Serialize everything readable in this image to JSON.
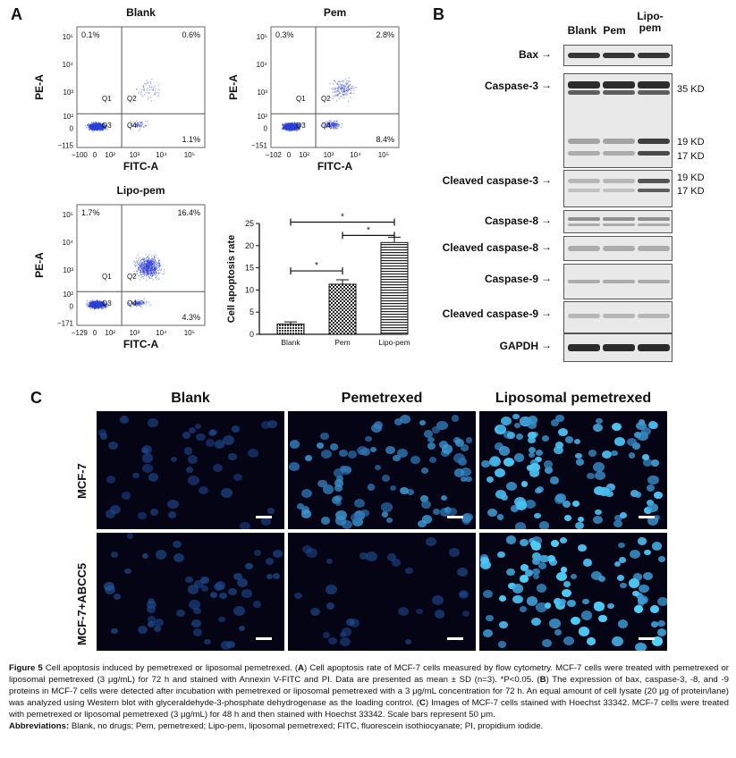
{
  "panel_a": {
    "letter": "A",
    "plots": [
      {
        "title": "Blank",
        "xlabel": "FITC-A",
        "ylabel": "PE-A",
        "xticks": [
          "−100",
          "0",
          "10²",
          "10³",
          "10⁴",
          "10⁵"
        ],
        "yticks": [
          "10⁵",
          "10⁴",
          "10³",
          "10²",
          "0",
          "−115"
        ],
        "quadrant_labels": [
          "Q1",
          "Q2",
          "Q3",
          "Q4"
        ],
        "percentages": {
          "q1": "0.1%",
          "q2": "0.6%",
          "q4": "1.1%"
        }
      },
      {
        "title": "Pem",
        "xlabel": "FITC-A",
        "ylabel": "PE-A",
        "xticks": [
          "−102",
          "0",
          "10²",
          "10³",
          "10⁴",
          "10⁵"
        ],
        "yticks": [
          "10⁵",
          "10⁴",
          "10³",
          "10²",
          "0",
          "−151"
        ],
        "quadrant_labels": [
          "Q1",
          "Q2",
          "Q3",
          "Q4"
        ],
        "percentages": {
          "q1": "0.3%",
          "q2": "2.8%",
          "q4": "8.4%"
        }
      },
      {
        "title": "Lipo-pem",
        "xlabel": "FITC-A",
        "ylabel": "PE-A",
        "xticks": [
          "−129",
          "0",
          "10²",
          "10³",
          "10⁴",
          "10⁵"
        ],
        "yticks": [
          "10⁵",
          "10⁴",
          "10³",
          "10²",
          "0",
          "−171"
        ],
        "quadrant_labels": [
          "Q1",
          "Q2",
          "Q3",
          "Q4"
        ],
        "percentages": {
          "q1": "1.7%",
          "q2": "16.4%",
          "q4": "4.3%"
        }
      }
    ]
  },
  "chart_data": {
    "type": "bar",
    "categories": [
      "Blank",
      "Pem",
      "Lipo-pem"
    ],
    "values": [
      2.3,
      11.3,
      20.7
    ],
    "errors": [
      0.5,
      1.0,
      1.2
    ],
    "ylabel": "Cell apoptosis rate",
    "ylim": [
      0,
      25
    ],
    "yticks": [
      "0",
      "5",
      "10",
      "15",
      "20",
      "25"
    ],
    "significance": [
      "*",
      "*",
      "*"
    ]
  },
  "panel_b": {
    "letter": "B",
    "lanes": [
      "Blank",
      "Pem",
      "Lipo-pem"
    ],
    "blots": [
      {
        "name": "Bax",
        "kd": []
      },
      {
        "name": "Caspase-3",
        "kd": [
          "35 KD",
          "19 KD",
          "17 KD"
        ]
      },
      {
        "name": "Cleaved caspase-3",
        "kd": [
          "19 KD",
          "17 KD"
        ]
      },
      {
        "name": "Caspase-8",
        "kd": []
      },
      {
        "name": "Cleaved caspase-8",
        "kd": []
      },
      {
        "name": "Caspase-9",
        "kd": []
      },
      {
        "name": "Cleaved caspase-9",
        "kd": []
      },
      {
        "name": "GAPDH",
        "kd": []
      }
    ]
  },
  "panel_c": {
    "letter": "C",
    "columns": [
      "Blank",
      "Pemetrexed",
      "Liposomal pemetrexed"
    ],
    "rows": [
      "MCF-7",
      "MCF-7+ABCC5"
    ]
  },
  "caption": {
    "figure_label": "Figure 5",
    "title": " Cell apoptosis induced by pemetrexed or liposomal pemetrexed. (",
    "a": "A",
    "text_a": ") Cell apoptosis rate of MCF-7 cells measured by flow cytometry. MCF-7 cells were treated with pemetrexed or liposomal pemetrexed (3 μg/mL) for 72 h and stained with Annexin V-FITC and PI. Data are presented as mean ± SD (n=3). *P<0.05. (",
    "b": "B",
    "text_b": ") The expression of bax, caspase-3, -8, and -9 proteins in MCF-7 cells were detected after incubation with pemetrexed or liposomal pemetrexed with a 3 μg/mL concentration for 72 h. An equal amount of cell lysate (20 μg of protein/lane) was analyzed using Western blot with glyceraldehyde-3-phosphate dehydrogenase as the loading control. (",
    "c": "C",
    "text_c": ") Images of MCF-7 cells stained with Hoechst 33342. MCF-7 cells were treated with pemetrexed or liposomal pemetrexed (3 μg/mL) for 48 h and then stained with Hoechst 33342. Scale bars represent 50 μm.",
    "abbrev_label": "Abbreviations:",
    "abbrev_text": " Blank, no drugs; Pem, pemetrexed; Lipo-pem, liposomal pemetrexed; FITC, fluorescein isothiocyanate; PI, propidium iodide."
  }
}
